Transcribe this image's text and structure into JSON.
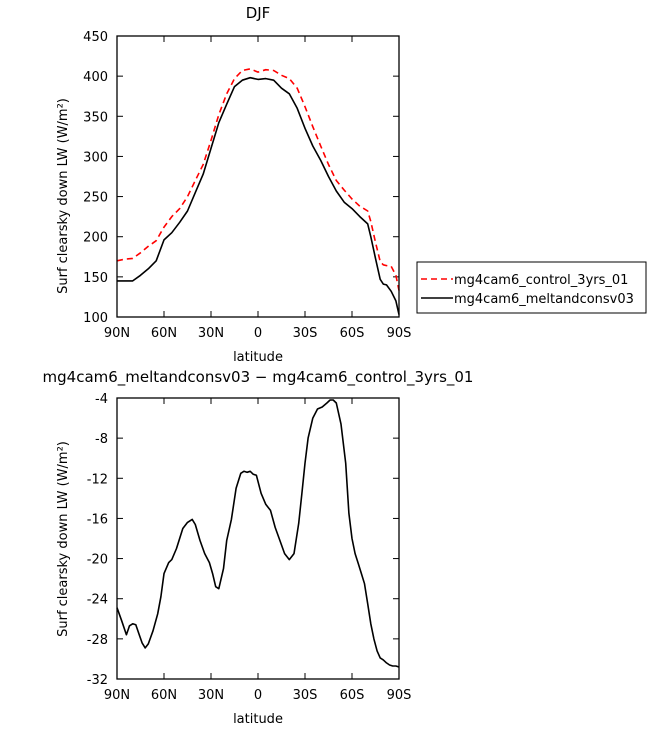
{
  "chart_data": [
    {
      "type": "line",
      "title": "DJF",
      "xlabel": "latitude",
      "ylabel": "Surf clearsky down LW (W/m²)",
      "xlim": [
        90,
        -90
      ],
      "ylim": [
        100,
        450
      ],
      "xticks": [
        90,
        60,
        30,
        0,
        -30,
        -60,
        -90
      ],
      "xtick_labels": [
        "90N",
        "60N",
        "30N",
        "0",
        "30S",
        "60S",
        "90S"
      ],
      "yticks": [
        100,
        150,
        200,
        250,
        300,
        350,
        400,
        450
      ],
      "ytick_labels": [
        "100",
        "150",
        "200",
        "250",
        "300",
        "350",
        "400",
        "450"
      ],
      "legend_position": "right",
      "series": [
        {
          "name": "mg4cam6_control_3yrs_01",
          "color": "#ff0000",
          "dash": "dashed",
          "x": [
            90,
            85,
            80,
            75,
            70,
            65,
            60,
            55,
            50,
            45,
            40,
            35,
            30,
            25,
            20,
            15,
            10,
            5,
            0,
            -5,
            -10,
            -15,
            -20,
            -25,
            -30,
            -35,
            -40,
            -45,
            -50,
            -55,
            -60,
            -65,
            -70,
            -72,
            -75,
            -78,
            -80,
            -82,
            -85,
            -88,
            -90
          ],
          "y": [
            170,
            172,
            173,
            180,
            188,
            195,
            212,
            225,
            235,
            250,
            270,
            290,
            320,
            352,
            378,
            397,
            407,
            409,
            405,
            408,
            407,
            401,
            397,
            385,
            362,
            337,
            313,
            290,
            270,
            258,
            247,
            238,
            232,
            219,
            193,
            169,
            165,
            164,
            163,
            152,
            133
          ]
        },
        {
          "name": "mg4cam6_meltandconsv03",
          "color": "#000000",
          "dash": "solid",
          "x": [
            90,
            85,
            80,
            75,
            70,
            65,
            60,
            55,
            50,
            45,
            40,
            35,
            30,
            25,
            20,
            15,
            10,
            5,
            0,
            -5,
            -10,
            -15,
            -20,
            -25,
            -30,
            -35,
            -40,
            -45,
            -50,
            -55,
            -60,
            -65,
            -70,
            -72,
            -75,
            -78,
            -80,
            -82,
            -85,
            -88,
            -90
          ],
          "y": [
            145,
            145,
            145,
            152,
            160,
            170,
            196,
            205,
            218,
            232,
            255,
            278,
            310,
            342,
            365,
            387,
            395,
            398,
            396,
            397,
            395,
            385,
            378,
            360,
            335,
            313,
            295,
            275,
            257,
            243,
            235,
            225,
            216,
            200,
            173,
            147,
            141,
            140,
            132,
            120,
            103
          ]
        }
      ]
    },
    {
      "type": "line",
      "title": "mg4cam6_meltandconsv03 − mg4cam6_control_3yrs_01",
      "xlabel": "latitude",
      "ylabel": "Surf clearsky down LW (W/m²)",
      "xlim": [
        90,
        -90
      ],
      "ylim": [
        -32,
        -4
      ],
      "xticks": [
        90,
        60,
        30,
        0,
        -30,
        -60,
        -90
      ],
      "xtick_labels": [
        "90N",
        "60N",
        "30N",
        "0",
        "30S",
        "60S",
        "90S"
      ],
      "yticks": [
        -32,
        -28,
        -24,
        -20,
        -16,
        -12,
        -8,
        -4
      ],
      "ytick_labels": [
        "-32",
        "-28",
        "-24",
        "-20",
        "-16",
        "-12",
        "-8",
        "-4"
      ],
      "series": [
        {
          "color": "#000000",
          "dash": "solid",
          "x": [
            90,
            87,
            84,
            82,
            80,
            78,
            76,
            74,
            72,
            70,
            67,
            64,
            62,
            60,
            57,
            55,
            52,
            48,
            45,
            42,
            40,
            37,
            34,
            31,
            29,
            27,
            25,
            22,
            20,
            17,
            14,
            11,
            9,
            7,
            5,
            3,
            1,
            -2,
            -5,
            -8,
            -11,
            -14,
            -17,
            -20,
            -23,
            -26,
            -28,
            -30,
            -32,
            -35,
            -38,
            -41,
            -44,
            -46,
            -48,
            -50,
            -53,
            -56,
            -58,
            -60,
            -62,
            -64,
            -66,
            -68,
            -70,
            -72,
            -74,
            -76,
            -78,
            -80,
            -82,
            -84,
            -86,
            -88,
            -90
          ],
          "y": [
            -24.9,
            -26.2,
            -27.6,
            -26.7,
            -26.5,
            -26.6,
            -27.5,
            -28.4,
            -28.9,
            -28.5,
            -27.2,
            -25.5,
            -23.8,
            -21.5,
            -20.4,
            -20.1,
            -19.0,
            -17.0,
            -16.4,
            -16.1,
            -16.6,
            -18.2,
            -19.5,
            -20.4,
            -21.5,
            -22.8,
            -23.0,
            -21.0,
            -18.2,
            -16.1,
            -13.0,
            -11.5,
            -11.3,
            -11.4,
            -11.3,
            -11.6,
            -11.7,
            -13.5,
            -14.6,
            -15.2,
            -16.9,
            -18.2,
            -19.5,
            -20.1,
            -19.5,
            -16.5,
            -13.5,
            -10.5,
            -8.0,
            -6.0,
            -5.1,
            -4.9,
            -4.5,
            -4.2,
            -4.2,
            -4.5,
            -6.6,
            -10.5,
            -15.5,
            -18.0,
            -19.5,
            -20.5,
            -21.5,
            -22.5,
            -24.5,
            -26.5,
            -28.0,
            -29.2,
            -29.9,
            -30.1,
            -30.4,
            -30.6,
            -30.7,
            -30.7,
            -30.8
          ]
        }
      ]
    }
  ]
}
